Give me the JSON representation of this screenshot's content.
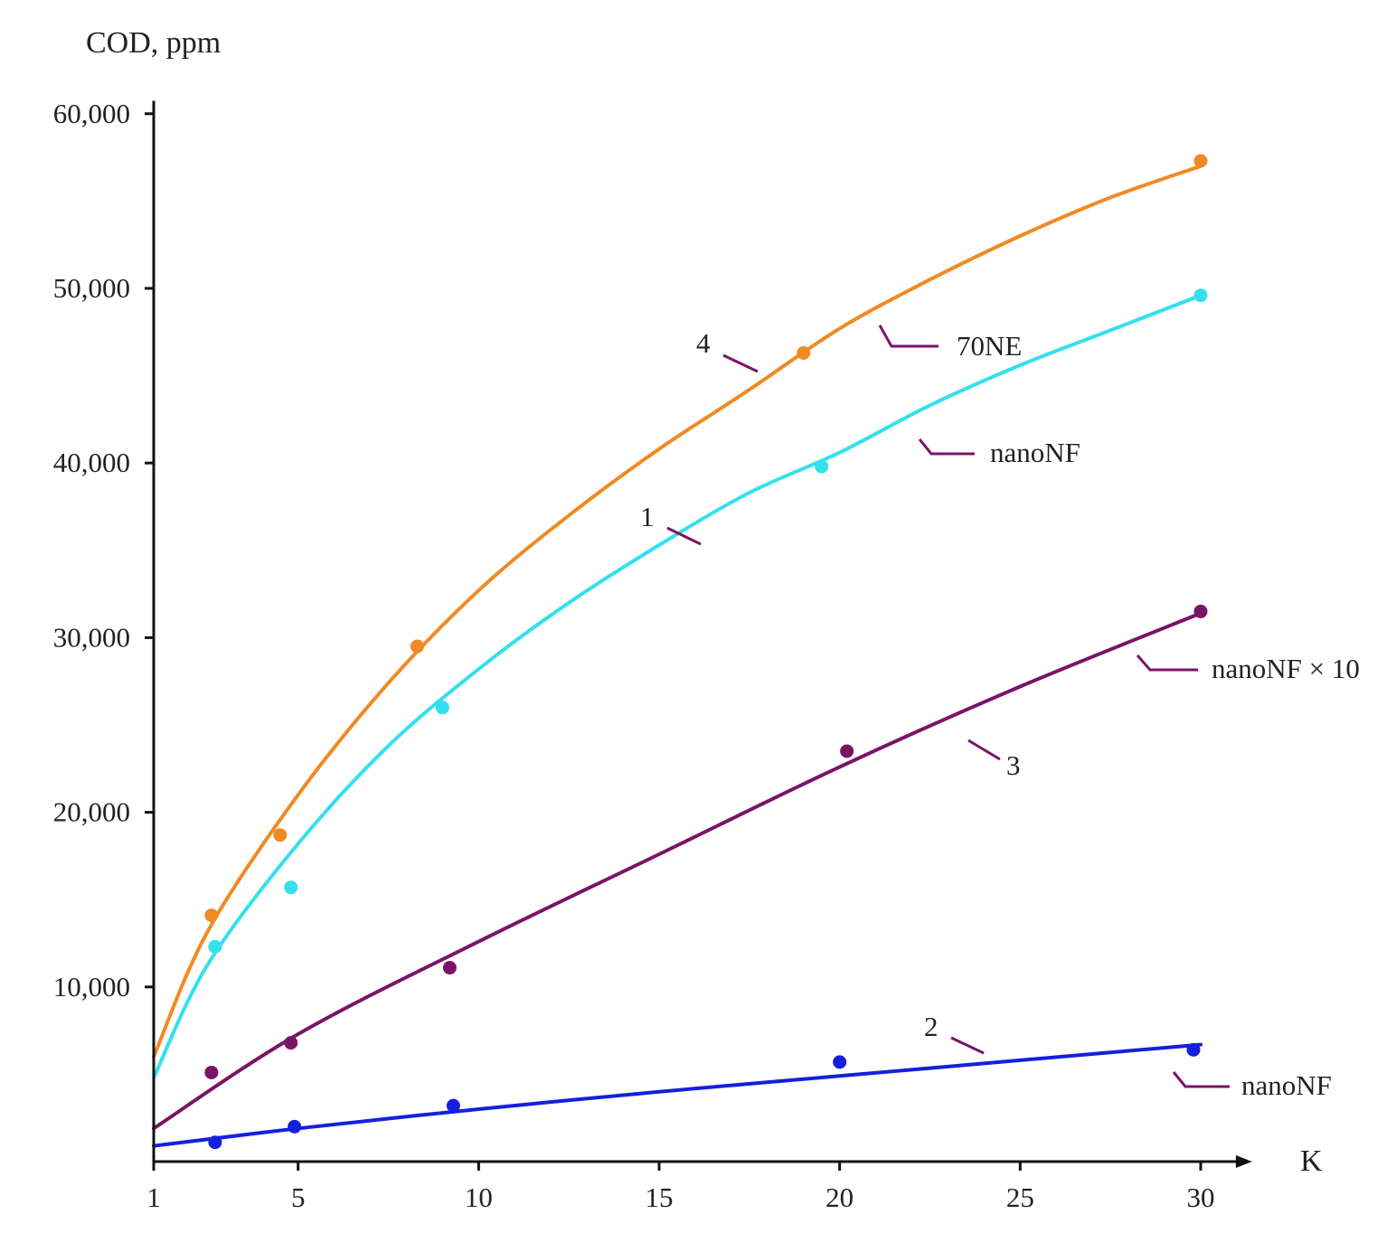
{
  "chart_data": {
    "type": "line",
    "title": "",
    "ylabel": "COD, ppm",
    "xlabel": "K",
    "xlim": [
      1,
      31
    ],
    "ylim": [
      -500,
      61000
    ],
    "x_ticks": [
      1,
      5,
      10,
      15,
      20,
      25,
      30
    ],
    "x_tick_labels": [
      "1",
      "5",
      "10",
      "15",
      "20",
      "25",
      "30"
    ],
    "y_ticks": [
      10000,
      20000,
      30000,
      40000,
      50000,
      60000
    ],
    "y_tick_labels": [
      "10,000",
      "20,000",
      "30,000",
      "40,000",
      "50,000",
      "60,000"
    ],
    "grid": false,
    "series": [
      {
        "name": "4",
        "label": "70NE",
        "color": "#f08a24",
        "points": [
          [
            2.6,
            14100
          ],
          [
            4.5,
            18700
          ],
          [
            8.3,
            29500
          ],
          [
            19.0,
            46300
          ],
          [
            30.0,
            57300
          ]
        ],
        "fit": [
          [
            1,
            6000
          ],
          [
            2.5,
            13200
          ],
          [
            5,
            21000
          ],
          [
            7.5,
            27400
          ],
          [
            10,
            32700
          ],
          [
            12.5,
            37000
          ],
          [
            15,
            40800
          ],
          [
            17.5,
            44200
          ],
          [
            20,
            47700
          ],
          [
            22.5,
            50500
          ],
          [
            25,
            53000
          ],
          [
            27.5,
            55200
          ],
          [
            30,
            57000
          ]
        ]
      },
      {
        "name": "1",
        "label": "nanoNF",
        "color": "#33e0ee",
        "points": [
          [
            2.7,
            12300
          ],
          [
            4.8,
            15700
          ],
          [
            9.0,
            26000
          ],
          [
            19.5,
            39800
          ],
          [
            30.0,
            49600
          ]
        ],
        "fit": [
          [
            1,
            4800
          ],
          [
            2.5,
            11300
          ],
          [
            5,
            18200
          ],
          [
            7.5,
            23800
          ],
          [
            10,
            28200
          ],
          [
            12.5,
            32000
          ],
          [
            15,
            35300
          ],
          [
            17.5,
            38300
          ],
          [
            20,
            40600
          ],
          [
            22.5,
            43300
          ],
          [
            25,
            45600
          ],
          [
            27.5,
            47600
          ],
          [
            30,
            49600
          ]
        ]
      },
      {
        "name": "3",
        "label": "nanoNF × 10",
        "color": "#7a1466",
        "points": [
          [
            2.6,
            5100
          ],
          [
            4.8,
            6800
          ],
          [
            9.2,
            11100
          ],
          [
            20.2,
            23500
          ],
          [
            30.0,
            31500
          ]
        ],
        "fit": [
          [
            1,
            1900
          ],
          [
            5,
            7300
          ],
          [
            10,
            12600
          ],
          [
            15,
            17600
          ],
          [
            20,
            22600
          ],
          [
            25,
            27200
          ],
          [
            30,
            31400
          ]
        ]
      },
      {
        "name": "2",
        "label": "nanoNF",
        "color": "#1420dc",
        "points": [
          [
            2.7,
            1100
          ],
          [
            4.9,
            2000
          ],
          [
            9.3,
            3200
          ],
          [
            20.0,
            5700
          ],
          [
            29.8,
            6400
          ]
        ],
        "fit": [
          [
            1,
            900
          ],
          [
            5,
            1900
          ],
          [
            10,
            3000
          ],
          [
            15,
            4000
          ],
          [
            20,
            4900
          ],
          [
            25,
            5800
          ],
          [
            30,
            6700
          ]
        ]
      }
    ]
  }
}
